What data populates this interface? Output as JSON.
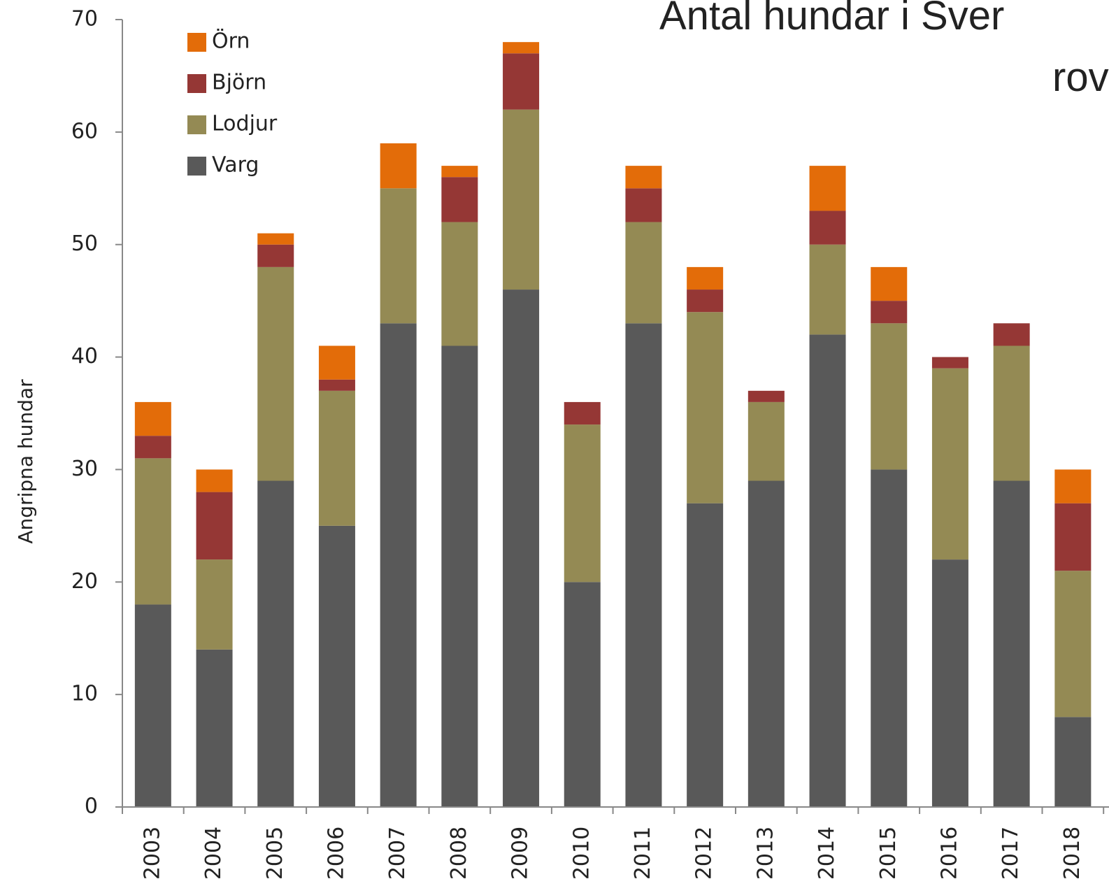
{
  "chart_data": {
    "type": "stacked_bar",
    "title": [
      "Antal hundar i Sver",
      "rov"
    ],
    "y_label": "Angripna hundar",
    "categories": [
      "2003",
      "2004",
      "2005",
      "2006",
      "2007",
      "2008",
      "2009",
      "2010",
      "2011",
      "2012",
      "2013",
      "2014",
      "2015",
      "2016",
      "2017",
      "2018"
    ],
    "series": [
      {
        "name": "Varg",
        "color": "#595959",
        "values": [
          18,
          14,
          29,
          25,
          43,
          41,
          46,
          20,
          43,
          27,
          29,
          42,
          30,
          22,
          29,
          8
        ]
      },
      {
        "name": "Lodjur",
        "color": "#948a54",
        "values": [
          13,
          8,
          19,
          12,
          12,
          11,
          16,
          14,
          9,
          17,
          7,
          8,
          13,
          17,
          12,
          13
        ]
      },
      {
        "name": "Björn",
        "color": "#953735",
        "values": [
          2,
          6,
          2,
          1,
          0,
          4,
          5,
          2,
          3,
          2,
          1,
          3,
          2,
          1,
          2,
          6
        ]
      },
      {
        "name": "Örn",
        "color": "#e36c09",
        "values": [
          3,
          2,
          1,
          3,
          4,
          1,
          1,
          0,
          2,
          2,
          0,
          4,
          3,
          0,
          0,
          3
        ]
      }
    ],
    "ylim": [
      0,
      70
    ],
    "yticks": [
      0,
      10,
      20,
      30,
      40,
      50,
      60,
      70
    ],
    "legend": "upper left"
  }
}
